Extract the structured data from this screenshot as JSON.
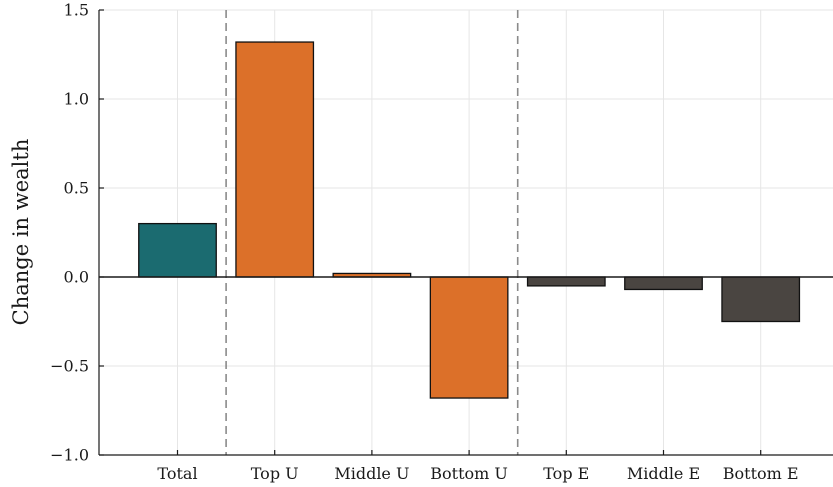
{
  "chart_data": {
    "type": "bar",
    "title": "",
    "xlabel": "",
    "ylabel": "Change in wealth",
    "ylim": [
      -1.0,
      1.5
    ],
    "yticks": [
      -1.0,
      -0.5,
      0.0,
      0.5,
      1.0,
      1.5
    ],
    "ytick_labels": [
      "−1.0",
      "−0.5",
      "0.0",
      "0.5",
      "1.0",
      "1.5"
    ],
    "categories": [
      "Total",
      "Top U",
      "Middle U",
      "Bottom U",
      "Top E",
      "Middle E",
      "Bottom E"
    ],
    "values": [
      0.3,
      1.32,
      0.02,
      -0.68,
      -0.05,
      -0.07,
      -0.25
    ],
    "bar_colors": [
      "#1b6b70",
      "#dc7029",
      "#dc7029",
      "#dc7029",
      "#4a4541",
      "#4a4541",
      "#4a4541"
    ],
    "group_dividers_after_index": [
      0,
      3
    ],
    "grid": true,
    "legend": "none"
  }
}
